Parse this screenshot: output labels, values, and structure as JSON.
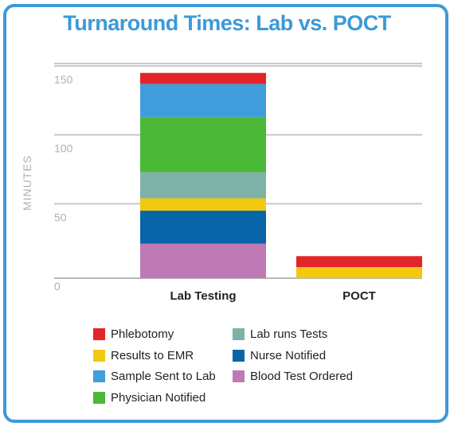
{
  "title": "Turnaround Times: Lab vs. POCT",
  "chart_data": {
    "type": "bar",
    "stacked": true,
    "categories": [
      "Lab Testing",
      "POCT"
    ],
    "ylabel": "MINUTES",
    "ylim": [
      0,
      150
    ],
    "yticks": [
      0,
      50,
      100,
      150
    ],
    "grid": true,
    "legend_position": "bottom",
    "series": [
      {
        "name": "Blood Test Ordered",
        "color": "#bf79b4",
        "values": [
          25,
          0
        ]
      },
      {
        "name": "Nurse Notified",
        "color": "#0866a8",
        "values": [
          24,
          0
        ]
      },
      {
        "name": "Results to EMR",
        "color": "#f2c811",
        "values": [
          9,
          8
        ]
      },
      {
        "name": "Lab runs Tests",
        "color": "#7eb2a9",
        "values": [
          19,
          0
        ]
      },
      {
        "name": "Physician Notified",
        "color": "#4cb838",
        "values": [
          40,
          0
        ]
      },
      {
        "name": "Sample Sent to Lab",
        "color": "#3f9edb",
        "values": [
          24,
          0
        ]
      },
      {
        "name": "Phlebotomy",
        "color": "#e3242b",
        "values": [
          8,
          8
        ]
      }
    ]
  },
  "legend": [
    {
      "label": "Phlebotomy",
      "color": "#e3242b"
    },
    {
      "label": "Results to EMR",
      "color": "#f2c811"
    },
    {
      "label": "Sample Sent to Lab",
      "color": "#3f9edb"
    },
    {
      "label": "Physician Notified",
      "color": "#4cb838"
    },
    {
      "label": "Lab runs Tests",
      "color": "#7eb2a9"
    },
    {
      "label": "Nurse Notified",
      "color": "#0866a8"
    },
    {
      "label": "Blood Test Ordered",
      "color": "#bf79b4"
    }
  ]
}
